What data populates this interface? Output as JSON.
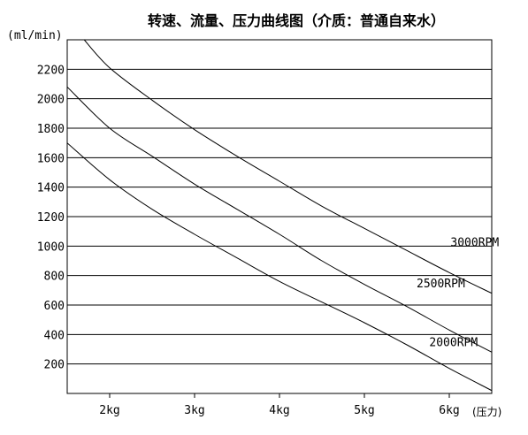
{
  "chart_data": {
    "type": "line",
    "title": "转速、流量、压力曲线图（介质：普通自来水）",
    "ylabel": "(ml/min)",
    "xlabel": "(压力)",
    "y_ticks": [
      "200",
      "400",
      "600",
      "800",
      "1000",
      "1200",
      "1400",
      "1600",
      "1800",
      "2000",
      "2200"
    ],
    "x_ticks": [
      "2kg",
      "3kg",
      "4kg",
      "5kg",
      "6kg"
    ],
    "x_tick_values": [
      2,
      3,
      4,
      5,
      6
    ],
    "xlim": [
      1.5,
      6.5
    ],
    "ylim": [
      0,
      2400
    ],
    "grid": "horizontal",
    "series": [
      {
        "name": "3000RPM",
        "x": [
          1.7,
          2.0,
          2.5,
          3.0,
          3.5,
          4.0,
          4.5,
          5.0,
          5.5,
          6.0,
          6.5
        ],
        "y": [
          2400,
          2210,
          1990,
          1790,
          1610,
          1440,
          1270,
          1120,
          970,
          820,
          680
        ]
      },
      {
        "name": "2500RPM",
        "x": [
          1.5,
          2.0,
          2.5,
          3.0,
          3.5,
          4.0,
          4.5,
          5.0,
          5.5,
          6.0,
          6.5
        ],
        "y": [
          2080,
          1800,
          1610,
          1420,
          1250,
          1080,
          900,
          740,
          590,
          430,
          280
        ]
      },
      {
        "name": "2000RPM",
        "x": [
          1.5,
          2.0,
          2.5,
          3.0,
          3.5,
          4.0,
          4.5,
          5.0,
          5.5,
          6.0,
          6.5
        ],
        "y": [
          1700,
          1450,
          1250,
          1080,
          920,
          760,
          620,
          480,
          330,
          170,
          20
        ]
      }
    ]
  }
}
